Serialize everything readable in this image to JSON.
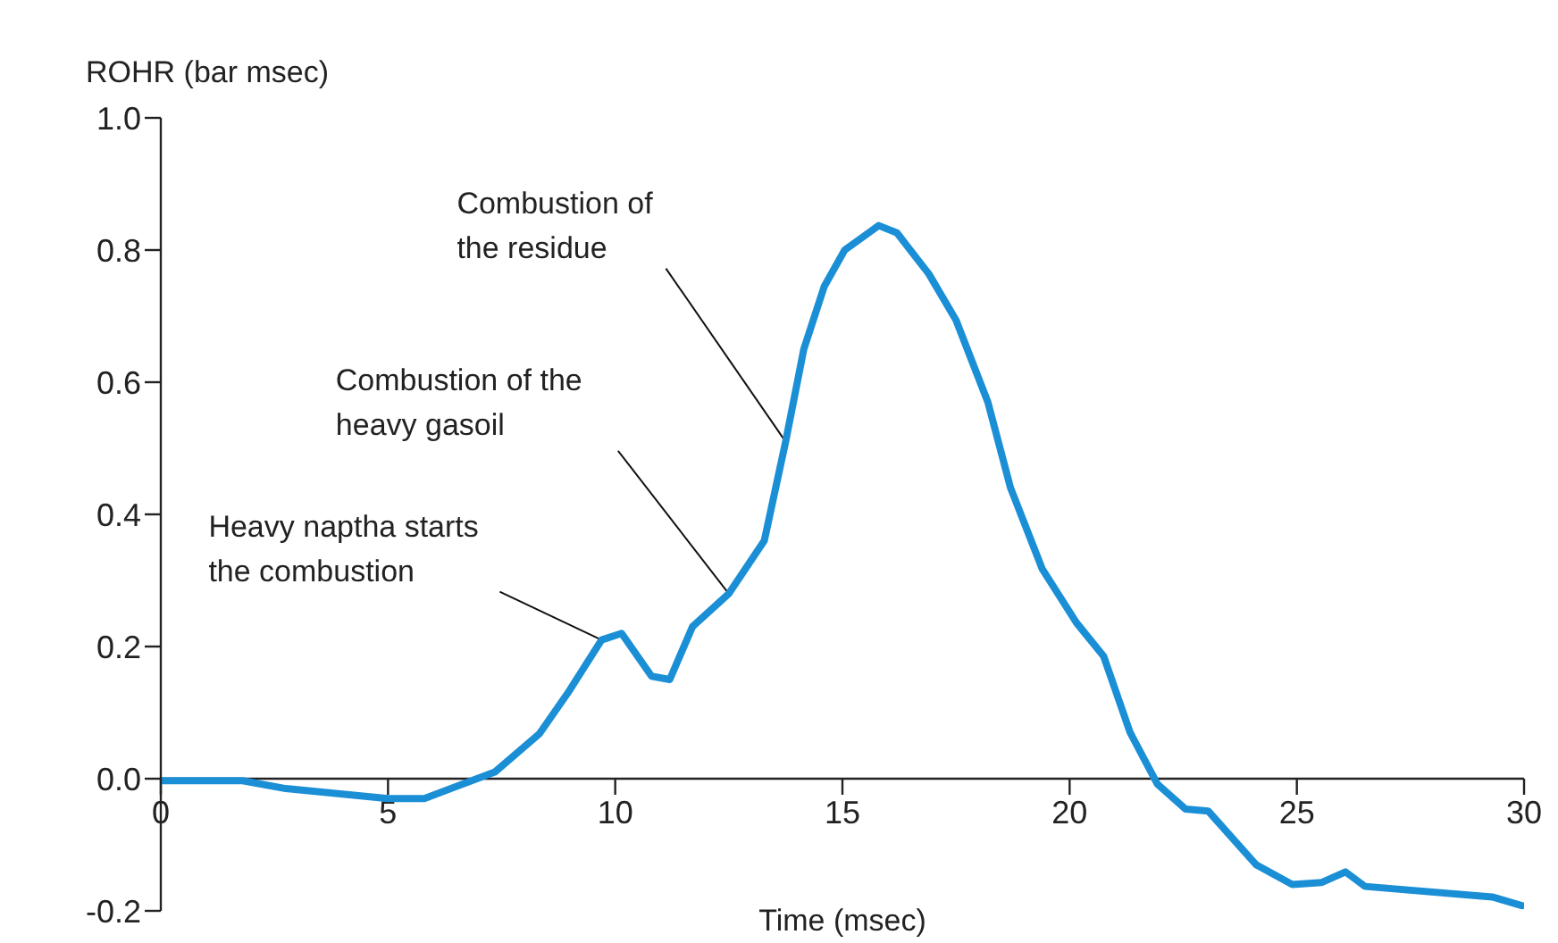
{
  "chart_data": {
    "type": "line",
    "xlabel": "Time (msec)",
    "ylabel": "ROHR (bar msec)",
    "xlim": [
      0,
      30
    ],
    "xticks": [
      0,
      5,
      10,
      15,
      20,
      25,
      30
    ],
    "ylim": [
      -0.2,
      1.0
    ],
    "yticks": [
      {
        "value": -0.2,
        "label": "-0.2"
      },
      {
        "value": 0,
        "label": "0.0"
      },
      {
        "value": 0.2,
        "label": "0.2"
      },
      {
        "value": 0.4,
        "label": "0.4"
      },
      {
        "value": 0.6,
        "label": "0.6"
      },
      {
        "value": 0.8,
        "label": "0.8"
      },
      {
        "value": 1.0,
        "label": "1.0"
      }
    ],
    "marker": "none",
    "line_style": "solid",
    "series": [
      {
        "color": "#1a8fd6",
        "x": [
          0,
          1.8,
          2.75,
          5,
          5.8,
          7.35,
          8.33,
          8.96,
          9.7,
          10.14,
          10.8,
          11.2,
          11.7,
          12.5,
          13.28,
          13.75,
          14.15,
          14.6,
          15.05,
          15.8,
          16.2,
          16.9,
          17.5,
          18.2,
          18.7,
          19.4,
          20.15,
          20.75,
          21.33,
          21.93,
          22.55,
          23.05,
          24.1,
          24.9,
          25.55,
          26.07,
          26.5,
          29.3,
          29.95
        ],
        "values": [
          -0.003,
          -0.003,
          -0.015,
          -0.03,
          -0.03,
          0.01,
          0.068,
          0.13,
          0.21,
          0.22,
          0.155,
          0.15,
          0.23,
          0.28,
          0.36,
          0.51,
          0.65,
          0.745,
          0.8,
          0.837,
          0.826,
          0.764,
          0.694,
          0.57,
          0.44,
          0.317,
          0.236,
          0.185,
          0.07,
          -0.008,
          -0.046,
          -0.049,
          -0.13,
          -0.16,
          -0.157,
          -0.141,
          -0.163,
          -0.179,
          -0.192
        ]
      }
    ],
    "annotations": [
      {
        "text": "Heavy naptha starts\nthe combustion",
        "x": 9.7,
        "y": 0.21
      },
      {
        "text": "Combustion of the\nheavy gasoil",
        "x": 12.5,
        "y": 0.28
      },
      {
        "text": "Combustion of\nthe residue",
        "x": 13.75,
        "y": 0.51
      }
    ]
  }
}
